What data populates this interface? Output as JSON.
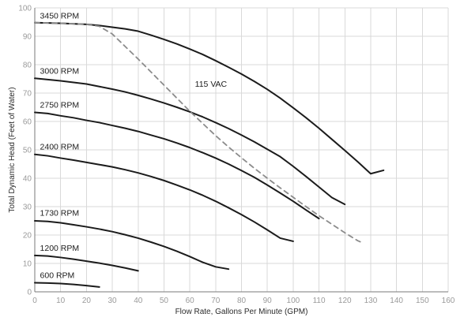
{
  "chart_data": {
    "type": "line",
    "xlabel": "Flow Rate, Gallons Per Minute (GPM)",
    "ylabel": "Total Dynamic Head (Feet of Water)",
    "xlim": [
      0,
      160
    ],
    "ylim": [
      0,
      100
    ],
    "x_ticks": [
      "0",
      "10",
      "20",
      "30",
      "40",
      "50",
      "60",
      "70",
      "80",
      "90",
      "100",
      "110",
      "120",
      "130",
      "140",
      "150",
      "160"
    ],
    "y_ticks": [
      "0",
      "10",
      "20",
      "30",
      "40",
      "50",
      "60",
      "70",
      "80",
      "90",
      "100"
    ],
    "grid": true,
    "legend": "none",
    "colors": {
      "curve": "#1b1b1b",
      "dashed_curve": "#8c8c8c",
      "grid": "#d9d9d9",
      "axis": "#7a7a7a",
      "tick_text": "#9a9a9a"
    },
    "series": [
      {
        "name": "3450 RPM",
        "style": "solid",
        "points": [
          [
            0,
            94.8
          ],
          [
            10,
            94.6
          ],
          [
            20,
            94.2
          ],
          [
            25,
            93.8
          ],
          [
            30,
            93.2
          ],
          [
            35,
            92.6
          ],
          [
            40,
            91.8
          ],
          [
            45,
            90.4
          ],
          [
            50,
            88.9
          ],
          [
            55,
            87.3
          ],
          [
            60,
            85.5
          ],
          [
            65,
            83.6
          ],
          [
            70,
            81.4
          ],
          [
            75,
            79.1
          ],
          [
            80,
            76.7
          ],
          [
            85,
            74.1
          ],
          [
            90,
            71.3
          ],
          [
            95,
            68.2
          ],
          [
            100,
            64.8
          ],
          [
            105,
            61.3
          ],
          [
            110,
            57.6
          ],
          [
            115,
            53.7
          ],
          [
            120,
            49.8
          ],
          [
            125,
            45.8
          ],
          [
            130,
            41.6
          ],
          [
            135,
            42.8
          ]
        ]
      },
      {
        "name": "3000 RPM",
        "style": "solid",
        "points": [
          [
            0,
            75.2
          ],
          [
            10,
            74.3
          ],
          [
            20,
            73.2
          ],
          [
            25,
            72.3
          ],
          [
            30,
            71.4
          ],
          [
            35,
            70.4
          ],
          [
            40,
            69.2
          ],
          [
            45,
            67.9
          ],
          [
            50,
            66.5
          ],
          [
            55,
            65.0
          ],
          [
            60,
            63.4
          ],
          [
            65,
            61.6
          ],
          [
            70,
            59.6
          ],
          [
            75,
            57.5
          ],
          [
            80,
            55.2
          ],
          [
            85,
            52.8
          ],
          [
            90,
            50.2
          ],
          [
            95,
            47.6
          ],
          [
            100,
            44.2
          ],
          [
            105,
            40.6
          ],
          [
            110,
            36.9
          ],
          [
            115,
            33.2
          ],
          [
            120,
            30.8
          ]
        ]
      },
      {
        "name": "2750 RPM",
        "style": "solid",
        "points": [
          [
            0,
            63.2
          ],
          [
            5,
            62.8
          ],
          [
            10,
            62.0
          ],
          [
            15,
            61.3
          ],
          [
            20,
            60.4
          ],
          [
            25,
            59.6
          ],
          [
            30,
            58.6
          ],
          [
            35,
            57.6
          ],
          [
            40,
            56.5
          ],
          [
            45,
            55.2
          ],
          [
            50,
            53.9
          ],
          [
            55,
            52.4
          ],
          [
            60,
            50.8
          ],
          [
            65,
            49.0
          ],
          [
            70,
            47.1
          ],
          [
            75,
            45.0
          ],
          [
            80,
            42.7
          ],
          [
            85,
            40.3
          ],
          [
            90,
            37.6
          ],
          [
            95,
            34.8
          ],
          [
            100,
            31.9
          ],
          [
            105,
            28.8
          ],
          [
            110,
            25.8
          ]
        ]
      },
      {
        "name": "2400 RPM",
        "style": "solid",
        "points": [
          [
            0,
            48.4
          ],
          [
            5,
            47.9
          ],
          [
            10,
            47.1
          ],
          [
            15,
            46.4
          ],
          [
            20,
            45.6
          ],
          [
            25,
            44.8
          ],
          [
            30,
            44.0
          ],
          [
            35,
            43.0
          ],
          [
            40,
            41.9
          ],
          [
            45,
            40.6
          ],
          [
            50,
            39.2
          ],
          [
            55,
            37.6
          ],
          [
            60,
            35.9
          ],
          [
            65,
            34.0
          ],
          [
            70,
            31.9
          ],
          [
            75,
            29.6
          ],
          [
            80,
            27.2
          ],
          [
            85,
            24.6
          ],
          [
            90,
            21.8
          ],
          [
            95,
            18.9
          ],
          [
            100,
            17.8
          ]
        ]
      },
      {
        "name": "1730 RPM",
        "style": "solid",
        "points": [
          [
            0,
            25.0
          ],
          [
            5,
            24.8
          ],
          [
            10,
            24.3
          ],
          [
            15,
            23.6
          ],
          [
            20,
            22.9
          ],
          [
            25,
            22.1
          ],
          [
            30,
            21.2
          ],
          [
            35,
            20.1
          ],
          [
            40,
            18.9
          ],
          [
            45,
            17.5
          ],
          [
            50,
            16.0
          ],
          [
            55,
            14.3
          ],
          [
            60,
            12.4
          ],
          [
            65,
            10.4
          ],
          [
            70,
            8.8
          ],
          [
            75,
            8.0
          ]
        ]
      },
      {
        "name": "1200 RPM",
        "style": "solid",
        "points": [
          [
            0,
            12.8
          ],
          [
            5,
            12.6
          ],
          [
            10,
            12.1
          ],
          [
            15,
            11.5
          ],
          [
            20,
            10.8
          ],
          [
            25,
            10.1
          ],
          [
            30,
            9.3
          ],
          [
            35,
            8.4
          ],
          [
            40,
            7.4
          ]
        ]
      },
      {
        "name": "600 RPM",
        "style": "solid",
        "points": [
          [
            0,
            3.2
          ],
          [
            5,
            3.1
          ],
          [
            10,
            2.9
          ],
          [
            15,
            2.6
          ],
          [
            20,
            2.2
          ],
          [
            25,
            1.7
          ]
        ]
      },
      {
        "name": "115 VAC",
        "style": "dashed",
        "points": [
          [
            0,
            94.8
          ],
          [
            10,
            94.6
          ],
          [
            20,
            94.2
          ],
          [
            25,
            93.5
          ],
          [
            30,
            90.8
          ],
          [
            35,
            86.4
          ],
          [
            40,
            82.0
          ],
          [
            45,
            77.4
          ],
          [
            50,
            72.8
          ],
          [
            55,
            68.2
          ],
          [
            60,
            63.6
          ],
          [
            65,
            59.3
          ],
          [
            70,
            55.0
          ],
          [
            75,
            51.0
          ],
          [
            80,
            47.2
          ],
          [
            85,
            43.5
          ],
          [
            90,
            40.0
          ],
          [
            95,
            36.6
          ],
          [
            100,
            33.3
          ],
          [
            105,
            30.0
          ],
          [
            110,
            26.8
          ],
          [
            115,
            23.8
          ],
          [
            120,
            20.8
          ],
          [
            125,
            18.0
          ],
          [
            126,
            17.6
          ]
        ]
      }
    ]
  }
}
